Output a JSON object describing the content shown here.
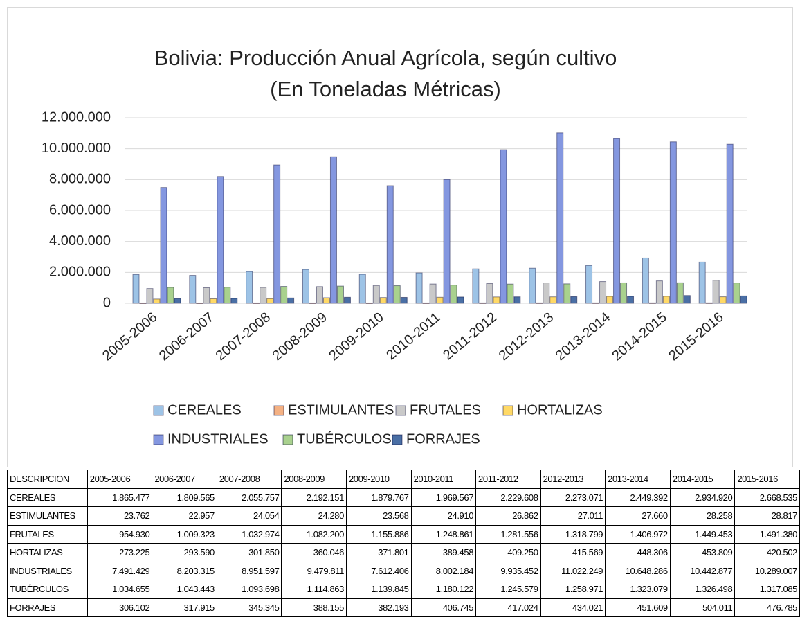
{
  "chart_data": {
    "type": "bar",
    "title": "Bolivia: Producción Anual Agrícola, según cultivo",
    "subtitle": "(En Toneladas Métricas)",
    "categories": [
      "2005-2006",
      "2006-2007",
      "2007-2008",
      "2008-2009",
      "2009-2010",
      "2010-2011",
      "2011-2012",
      "2012-2013",
      "2013-2014",
      "2014-2015",
      "2015-2016"
    ],
    "series": [
      {
        "name": "CEREALES",
        "color": "#9dc3e6",
        "values": [
          1865477,
          1809565,
          2055757,
          2192151,
          1879767,
          1969567,
          2229608,
          2273071,
          2449392,
          2934920,
          2668535
        ],
        "value_labels": [
          "1.865.477",
          "1.809.565",
          "2.055.757",
          "2.192.151",
          "1.879.767",
          "1.969.567",
          "2.229.608",
          "2.273.071",
          "2.449.392",
          "2.934.920",
          "2.668.535"
        ]
      },
      {
        "name": "ESTIMULANTES",
        "color": "#f4b183",
        "values": [
          23762,
          22957,
          24054,
          24280,
          23568,
          24910,
          26862,
          27011,
          27660,
          28258,
          28817
        ],
        "value_labels": [
          "23.762",
          "22.957",
          "24.054",
          "24.280",
          "23.568",
          "24.910",
          "26.862",
          "27.011",
          "27.660",
          "28.258",
          "28.817"
        ]
      },
      {
        "name": "FRUTALES",
        "color": "#c9c9c9",
        "values": [
          954930,
          1009323,
          1032974,
          1082200,
          1155886,
          1248861,
          1281556,
          1318799,
          1406972,
          1449453,
          1491380
        ],
        "value_labels": [
          "954.930",
          "1.009.323",
          "1.032.974",
          "1.082.200",
          "1.155.886",
          "1.248.861",
          "1.281.556",
          "1.318.799",
          "1.406.972",
          "1.449.453",
          "1.491.380"
        ]
      },
      {
        "name": "HORTALIZAS",
        "color": "#ffd966",
        "values": [
          273225,
          293590,
          301850,
          360046,
          371801,
          389458,
          409250,
          415569,
          448306,
          453809,
          420502
        ],
        "value_labels": [
          "273.225",
          "293.590",
          "301.850",
          "360.046",
          "371.801",
          "389.458",
          "409.250",
          "415.569",
          "448.306",
          "453.809",
          "420.502"
        ]
      },
      {
        "name": "INDUSTRIALES",
        "color": "#8497e0",
        "values": [
          7491429,
          8203315,
          8951597,
          9479811,
          7612406,
          8002184,
          9935452,
          11022249,
          10648286,
          10442877,
          10289007
        ],
        "value_labels": [
          "7.491.429",
          "8.203.315",
          "8.951.597",
          "9.479.811",
          "7.612.406",
          "8.002.184",
          "9.935.452",
          "11.022.249",
          "10.648.286",
          "10.442.877",
          "10.289.007"
        ]
      },
      {
        "name": "TUBÉRCULOS",
        "color": "#a9d18e",
        "values": [
          1034655,
          1043443,
          1093698,
          1114863,
          1139845,
          1180122,
          1245579,
          1258971,
          1323079,
          1326498,
          1317085
        ],
        "value_labels": [
          "1.034.655",
          "1.043.443",
          "1.093.698",
          "1.114.863",
          "1.139.845",
          "1.180.122",
          "1.245.579",
          "1.258.971",
          "1.323.079",
          "1.326.498",
          "1.317.085"
        ]
      },
      {
        "name": "FORRAJES",
        "color": "#4a6fa5",
        "values": [
          306102,
          317915,
          345345,
          388155,
          382193,
          406745,
          417024,
          434021,
          451609,
          504011,
          476785
        ],
        "value_labels": [
          "306.102",
          "317.915",
          "345.345",
          "388.155",
          "382.193",
          "406.745",
          "417.024",
          "434.021",
          "451.609",
          "504.011",
          "476.785"
        ]
      }
    ],
    "ylim": [
      0,
      12000000
    ],
    "yticks": [
      0,
      {
        "value": 2000000,
        "label": "2.000.000"
      },
      {
        "value": 4000000,
        "label": "4.000.000"
      },
      {
        "value": 6000000,
        "label": "6.000.000"
      },
      {
        "value": 8000000,
        "label": "8.000.000"
      },
      {
        "value": 10000000,
        "label": "10.000.000"
      },
      {
        "value": 12000000,
        "label": "12.000.000"
      }
    ],
    "grid": true,
    "legend": "bottom",
    "table_header": "DESCRIPCION"
  }
}
